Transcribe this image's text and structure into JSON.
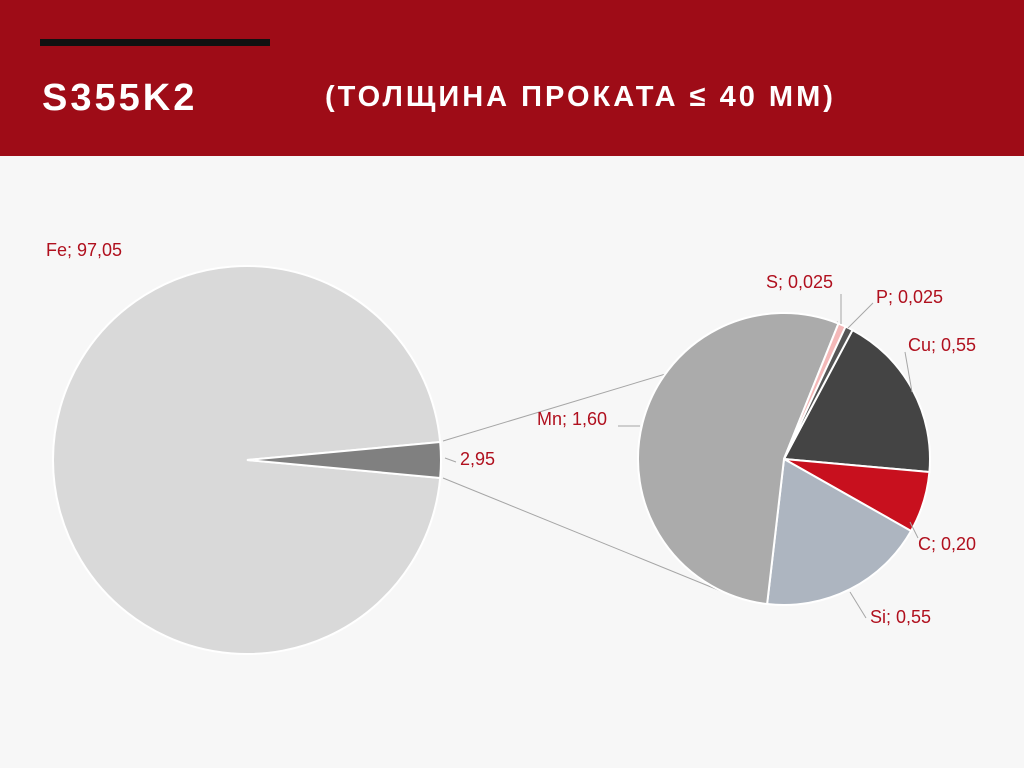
{
  "chart_data": {
    "type": "pie-of-pie",
    "title": "S355K2",
    "subtitle": "(ТОЛЩИНА ПРОКАТА ≤ 40 ММ)",
    "pies": [
      {
        "values": [
          97.05,
          2.95
        ],
        "value_labels": [
          "Fe; 97,05",
          "2,95"
        ],
        "colors": [
          "#d9d9d9",
          "#808080"
        ]
      },
      {
        "values": [
          0.55,
          0.2,
          0.55,
          1.6,
          0.025,
          0.025
        ],
        "value_labels": [
          "Cu; 0,55",
          "C; 0,20",
          "Si; 0,55",
          "Mn; 1,60",
          "S; 0,025",
          "P; 0,025"
        ],
        "colors": [
          "#444444",
          "#c8101e",
          "#adb5c0",
          "#ababab",
          "#f4b8b8",
          "#555555"
        ]
      }
    ]
  }
}
